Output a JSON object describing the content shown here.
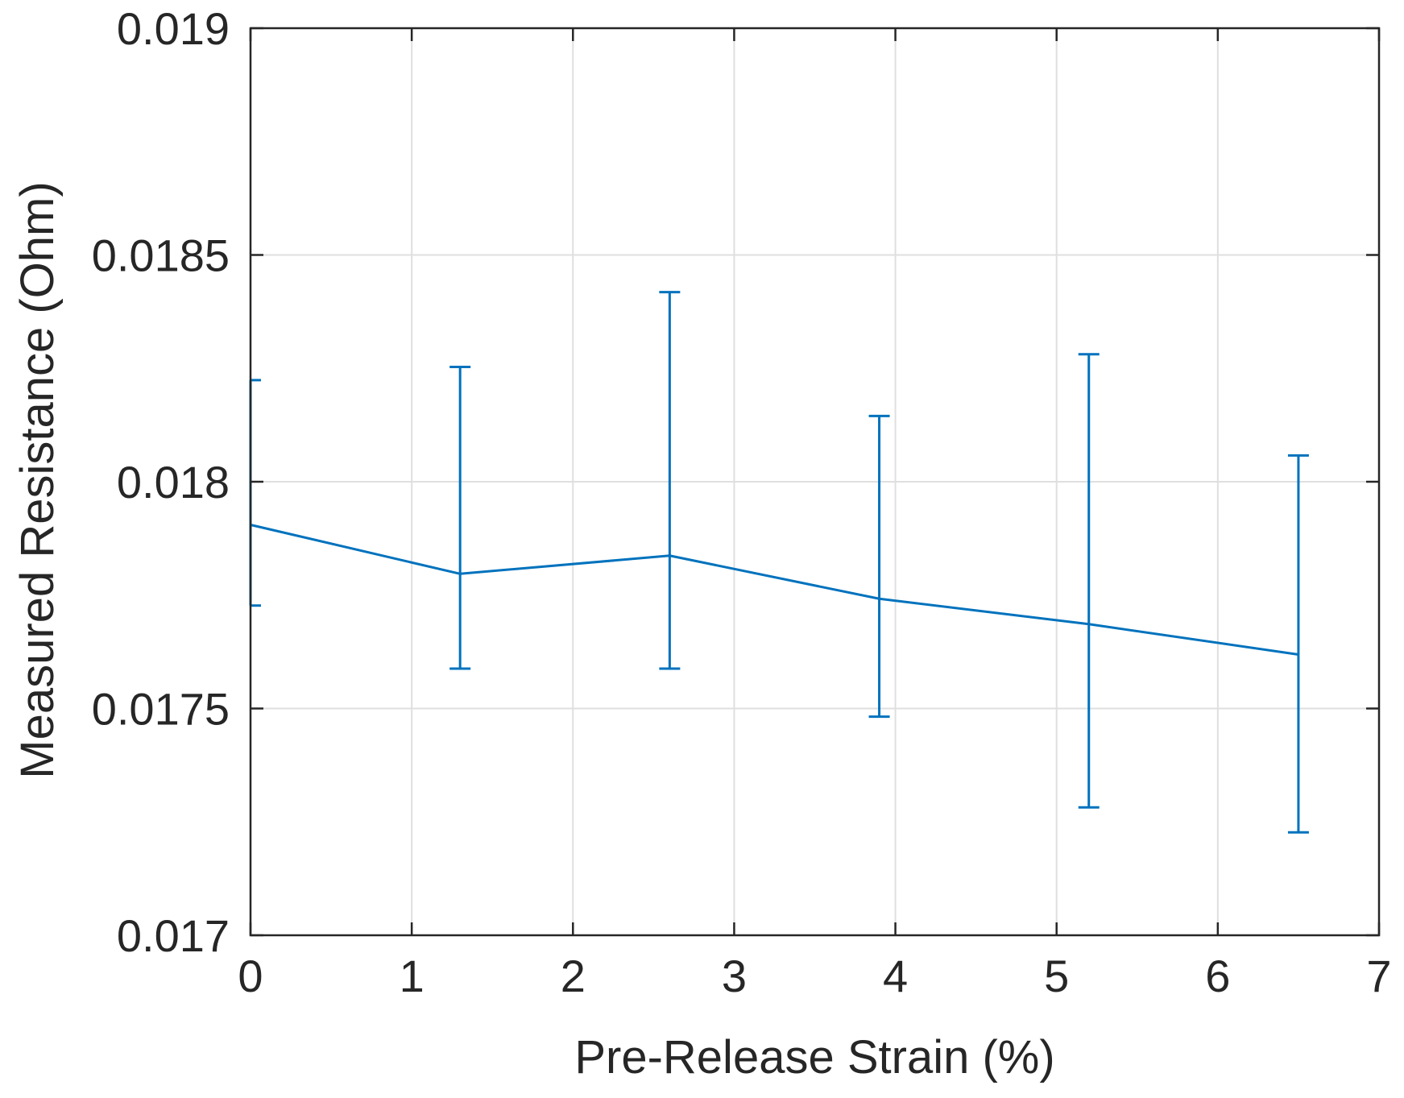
{
  "chart_data": {
    "type": "line",
    "title": "",
    "xlabel": "Pre-Release Strain (%)",
    "ylabel": "Measured Resistance (Ohm)",
    "xlim": [
      0,
      7
    ],
    "ylim": [
      0.017,
      0.019
    ],
    "x_ticks": [
      0,
      1,
      2,
      3,
      4,
      5,
      6,
      7
    ],
    "x_tick_labels": [
      "0",
      "1",
      "2",
      "3",
      "4",
      "5",
      "6",
      "7"
    ],
    "y_ticks": [
      0.017,
      0.0175,
      0.018,
      0.0185,
      0.019
    ],
    "y_tick_labels": [
      "0.017",
      "0.0175",
      "0.018",
      "0.0185",
      "0.019"
    ],
    "grid": true,
    "series": [
      {
        "name": "Measured Resistance",
        "color": "#0072bd",
        "x": [
          0,
          1.3,
          2.6,
          3.9,
          5.2,
          6.5
        ],
        "y": [
          0.017905,
          0.017797,
          0.017837,
          0.017742,
          0.017686,
          0.017619
        ],
        "error_lower": [
          0.017727,
          0.017588,
          0.017588,
          0.017482,
          0.017282,
          0.017227
        ],
        "error_upper": [
          0.018224,
          0.018253,
          0.018418,
          0.018145,
          0.018281,
          0.018058
        ]
      }
    ]
  },
  "colors": {
    "axis": "#262626",
    "grid": "#dfdfdf",
    "series": "#0072bd"
  }
}
